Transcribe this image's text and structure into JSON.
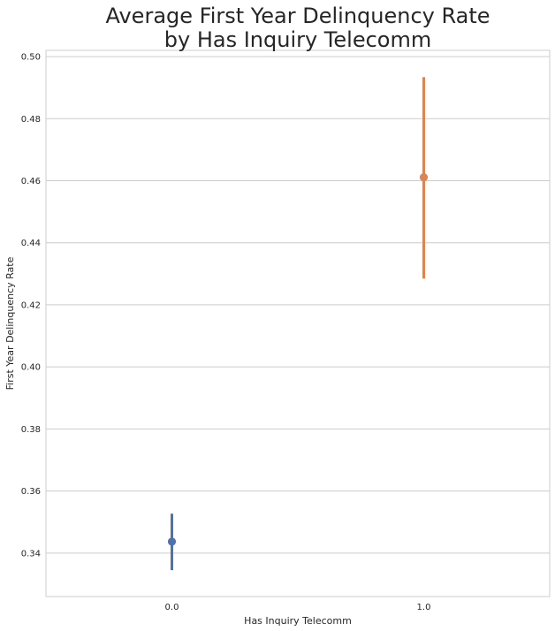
{
  "chart_data": {
    "type": "pointplot",
    "title": [
      "Average First Year Delinquency Rate",
      "by Has Inquiry Telecomm"
    ],
    "xlabel": "Has Inquiry Telecomm",
    "ylabel": "First Year Delinquency Rate",
    "categories": [
      "0.0",
      "1.0"
    ],
    "points": [
      {
        "category": "0.0",
        "value": 0.3437,
        "ci_low": 0.3345,
        "ci_high": 0.3527,
        "color": "#4c72b0"
      },
      {
        "category": "1.0",
        "value": 0.4611,
        "ci_low": 0.4285,
        "ci_high": 0.4934,
        "color": "#dd8452"
      }
    ],
    "ylim": [
      0.326,
      0.502
    ],
    "yticks": [
      "0.34",
      "0.36",
      "0.38",
      "0.40",
      "0.42",
      "0.44",
      "0.46",
      "0.48",
      "0.50"
    ],
    "grid": true,
    "gridColor": "#cccccc",
    "frameColor": "#cccccc"
  }
}
